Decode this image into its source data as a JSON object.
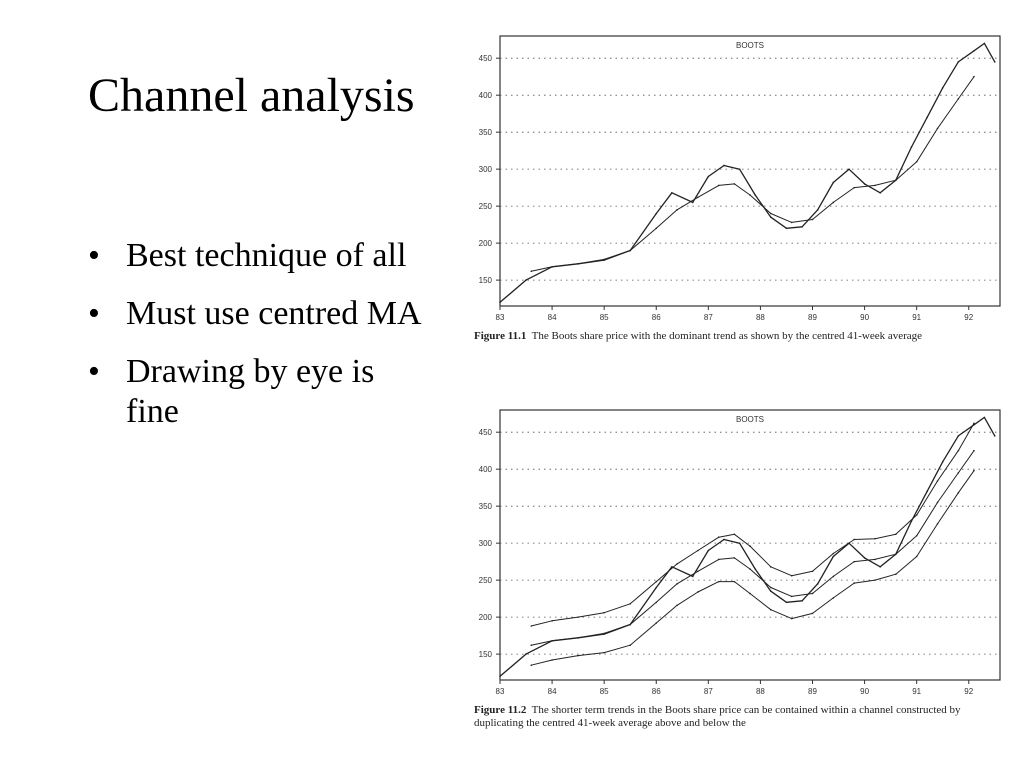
{
  "slide": {
    "title": "Channel analysis",
    "bullets": [
      "Best technique of all",
      "Must use centred MA",
      "Drawing by eye is fine"
    ]
  },
  "figures": [
    {
      "caption_label": "Figure 11.1",
      "caption_text": "The Boots share price with the dominant trend as shown by the centred 41-week average"
    },
    {
      "caption_label": "Figure 11.2",
      "caption_text": "The shorter term trends in the Boots share price can be contained within a channel constructed by duplicating the centred 41-week average above and below the"
    }
  ],
  "chart_data": [
    {
      "type": "line",
      "title": "BOOTS",
      "xlabel": "",
      "ylabel": "",
      "x_ticks": [
        "83",
        "84",
        "85",
        "86",
        "87",
        "88",
        "89",
        "90",
        "91",
        "92"
      ],
      "y_ticks": [
        150,
        200,
        250,
        300,
        350,
        400,
        450
      ],
      "xlim": [
        83,
        92.6
      ],
      "ylim": [
        115,
        480
      ],
      "grid": "dotted horizontal",
      "series": [
        {
          "values": [
            [
              83,
              120
            ],
            [
              83.5,
              150
            ],
            [
              84,
              168
            ],
            [
              84.5,
              172
            ],
            [
              85,
              177
            ],
            [
              85.5,
              190
            ],
            [
              86,
              240
            ],
            [
              86.3,
              268
            ],
            [
              86.7,
              255
            ],
            [
              87,
              290
            ],
            [
              87.3,
              305
            ],
            [
              87.6,
              300
            ],
            [
              87.9,
              265
            ],
            [
              88.2,
              235
            ],
            [
              88.5,
              220
            ],
            [
              88.8,
              222
            ],
            [
              89.1,
              245
            ],
            [
              89.4,
              282
            ],
            [
              89.7,
              300
            ],
            [
              90,
              280
            ],
            [
              90.3,
              268
            ],
            [
              90.6,
              285
            ],
            [
              90.9,
              330
            ],
            [
              91.2,
              370
            ],
            [
              91.5,
              410
            ],
            [
              91.8,
              445
            ],
            [
              92.1,
              460
            ],
            [
              92.3,
              470
            ],
            [
              92.5,
              445
            ]
          ]
        },
        {
          "values": [
            [
              83.6,
              162
            ],
            [
              84,
              168
            ],
            [
              84.5,
              172
            ],
            [
              85,
              178
            ],
            [
              85.5,
              190
            ],
            [
              86,
              220
            ],
            [
              86.4,
              245
            ],
            [
              86.8,
              262
            ],
            [
              87.2,
              278
            ],
            [
              87.5,
              280
            ],
            [
              87.8,
              265
            ],
            [
              88.2,
              240
            ],
            [
              88.6,
              228
            ],
            [
              89,
              232
            ],
            [
              89.4,
              255
            ],
            [
              89.8,
              275
            ],
            [
              90.2,
              278
            ],
            [
              90.6,
              285
            ],
            [
              91,
              310
            ],
            [
              91.4,
              355
            ],
            [
              91.8,
              395
            ],
            [
              92.1,
              425
            ]
          ]
        }
      ]
    },
    {
      "type": "line",
      "title": "BOOTS",
      "xlabel": "",
      "ylabel": "",
      "x_ticks": [
        "83",
        "84",
        "85",
        "86",
        "87",
        "88",
        "89",
        "90",
        "91",
        "92"
      ],
      "y_ticks": [
        150,
        200,
        250,
        300,
        350,
        400,
        450
      ],
      "xlim": [
        83,
        92.6
      ],
      "ylim": [
        115,
        480
      ],
      "grid": "dotted horizontal",
      "series": [
        {
          "values": [
            [
              83,
              120
            ],
            [
              83.5,
              150
            ],
            [
              84,
              168
            ],
            [
              84.5,
              172
            ],
            [
              85,
              177
            ],
            [
              85.5,
              190
            ],
            [
              86,
              240
            ],
            [
              86.3,
              268
            ],
            [
              86.7,
              255
            ],
            [
              87,
              290
            ],
            [
              87.3,
              305
            ],
            [
              87.6,
              300
            ],
            [
              87.9,
              265
            ],
            [
              88.2,
              235
            ],
            [
              88.5,
              220
            ],
            [
              88.8,
              222
            ],
            [
              89.1,
              245
            ],
            [
              89.4,
              282
            ],
            [
              89.7,
              300
            ],
            [
              90,
              280
            ],
            [
              90.3,
              268
            ],
            [
              90.6,
              285
            ],
            [
              90.9,
              330
            ],
            [
              91.2,
              370
            ],
            [
              91.5,
              410
            ],
            [
              91.8,
              445
            ],
            [
              92.1,
              460
            ],
            [
              92.3,
              470
            ],
            [
              92.5,
              445
            ]
          ]
        },
        {
          "values": [
            [
              83.6,
              162
            ],
            [
              84,
              168
            ],
            [
              84.5,
              172
            ],
            [
              85,
              178
            ],
            [
              85.5,
              190
            ],
            [
              86,
              220
            ],
            [
              86.4,
              245
            ],
            [
              86.8,
              262
            ],
            [
              87.2,
              278
            ],
            [
              87.5,
              280
            ],
            [
              87.8,
              265
            ],
            [
              88.2,
              240
            ],
            [
              88.6,
              228
            ],
            [
              89,
              232
            ],
            [
              89.4,
              255
            ],
            [
              89.8,
              275
            ],
            [
              90.2,
              278
            ],
            [
              90.6,
              285
            ],
            [
              91,
              310
            ],
            [
              91.4,
              355
            ],
            [
              91.8,
              395
            ],
            [
              92.1,
              425
            ]
          ]
        },
        {
          "values": [
            [
              83.6,
              188
            ],
            [
              84,
              195
            ],
            [
              84.5,
              200
            ],
            [
              85,
              206
            ],
            [
              85.5,
              218
            ],
            [
              86,
              248
            ],
            [
              86.4,
              272
            ],
            [
              86.8,
              290
            ],
            [
              87.2,
              308
            ],
            [
              87.5,
              312
            ],
            [
              87.8,
              296
            ],
            [
              88.2,
              268
            ],
            [
              88.6,
              256
            ],
            [
              89,
              262
            ],
            [
              89.4,
              286
            ],
            [
              89.8,
              305
            ],
            [
              90.2,
              306
            ],
            [
              90.6,
              312
            ],
            [
              91,
              338
            ],
            [
              91.4,
              384
            ],
            [
              91.8,
              425
            ],
            [
              92.1,
              462
            ]
          ]
        },
        {
          "values": [
            [
              83.6,
              135
            ],
            [
              84,
              142
            ],
            [
              84.5,
              148
            ],
            [
              85,
              152
            ],
            [
              85.5,
              162
            ],
            [
              86,
              192
            ],
            [
              86.4,
              216
            ],
            [
              86.8,
              234
            ],
            [
              87.2,
              248
            ],
            [
              87.5,
              248
            ],
            [
              87.8,
              232
            ],
            [
              88.2,
              210
            ],
            [
              88.6,
              198
            ],
            [
              89,
              205
            ],
            [
              89.4,
              226
            ],
            [
              89.8,
              246
            ],
            [
              90.2,
              250
            ],
            [
              90.6,
              258
            ],
            [
              91,
              282
            ],
            [
              91.4,
              326
            ],
            [
              91.8,
              368
            ],
            [
              92.1,
              398
            ]
          ]
        }
      ]
    }
  ]
}
